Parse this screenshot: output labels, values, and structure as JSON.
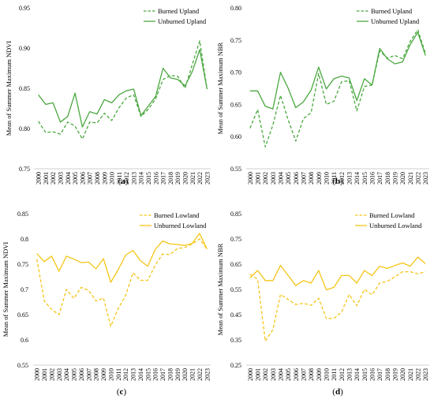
{
  "chart_data": [
    {
      "id": "a",
      "type": "line",
      "caption": "(a)",
      "ylabel": "Mean of Summer Maximum NDVI",
      "xlabel": "",
      "ylim": [
        0.75,
        0.95
      ],
      "yticks": [
        0.75,
        0.8,
        0.85,
        0.9,
        0.95
      ],
      "ytick_labels": [
        "0.75",
        "0.80",
        "0.85",
        "0.90",
        "0.95"
      ],
      "x": [
        "2000",
        "2001",
        "2002",
        "2003",
        "2004",
        "2005",
        "2006",
        "2007",
        "2008",
        "2009",
        "2010",
        "2011",
        "2012",
        "2013",
        "2014",
        "2015",
        "2016",
        "2017",
        "2018",
        "2019",
        "2020",
        "2021",
        "2022",
        "2023"
      ],
      "legend_position": "top-right",
      "series": [
        {
          "name": "Burned Upland",
          "style": "dashed",
          "color": "#4aa83f",
          "values": [
            0.809,
            0.795,
            0.796,
            0.793,
            0.808,
            0.803,
            0.787,
            0.808,
            0.807,
            0.819,
            0.81,
            0.826,
            0.838,
            0.842,
            0.815,
            0.824,
            0.837,
            0.861,
            0.866,
            0.865,
            0.85,
            0.88,
            0.909,
            0.849
          ]
        },
        {
          "name": "Unburned Upland",
          "style": "solid",
          "color": "#4aa83f",
          "values": [
            0.842,
            0.83,
            0.832,
            0.808,
            0.815,
            0.844,
            0.802,
            0.821,
            0.818,
            0.836,
            0.832,
            0.842,
            0.847,
            0.849,
            0.816,
            0.828,
            0.84,
            0.875,
            0.863,
            0.861,
            0.853,
            0.871,
            0.898,
            0.849
          ]
        }
      ]
    },
    {
      "id": "b",
      "type": "line",
      "caption": "(b)",
      "ylabel": "Mean of Summer Maximum NBR",
      "xlabel": "",
      "ylim": [
        0.55,
        0.8
      ],
      "yticks": [
        0.55,
        0.6,
        0.65,
        0.7,
        0.75,
        0.8
      ],
      "ytick_labels": [
        "0.55",
        "0.60",
        "0.65",
        "0.70",
        "0.75",
        "0.80"
      ],
      "x": [
        "2000",
        "2001",
        "2002",
        "2003",
        "2004",
        "2005",
        "2006",
        "2007",
        "2008",
        "2009",
        "2010",
        "2011",
        "2012",
        "2013",
        "2014",
        "2015",
        "2016",
        "2017",
        "2018",
        "2019",
        "2020",
        "2021",
        "2022",
        "2023"
      ],
      "legend_position": "top-right",
      "series": [
        {
          "name": "Burned Upland",
          "style": "dashed",
          "color": "#4aa83f",
          "values": [
            0.613,
            0.642,
            0.584,
            0.618,
            0.664,
            0.626,
            0.593,
            0.628,
            0.637,
            0.698,
            0.65,
            0.655,
            0.685,
            0.687,
            0.64,
            0.678,
            0.68,
            0.733,
            0.722,
            0.726,
            0.721,
            0.748,
            0.766,
            0.729
          ]
        },
        {
          "name": "Unburned Upland",
          "style": "solid",
          "color": "#4aa83f",
          "values": [
            0.671,
            0.671,
            0.647,
            0.643,
            0.7,
            0.675,
            0.645,
            0.654,
            0.672,
            0.708,
            0.674,
            0.69,
            0.694,
            0.691,
            0.656,
            0.69,
            0.68,
            0.737,
            0.721,
            0.713,
            0.716,
            0.743,
            0.762,
            0.726
          ]
        }
      ]
    },
    {
      "id": "c",
      "type": "line",
      "caption": "(c)",
      "ylabel": "Mean of Summer Maximum NDVI",
      "xlabel": "",
      "ylim": [
        0.55,
        0.85
      ],
      "yticks": [
        0.55,
        0.6,
        0.65,
        0.7,
        0.75,
        0.8,
        0.85
      ],
      "ytick_labels": [
        "0.55",
        "0.6",
        "0.65",
        "0.7",
        "0.75",
        "0.8",
        "0.85"
      ],
      "x": [
        "2000",
        "2001",
        "2002",
        "2003",
        "2004",
        "2005",
        "2006",
        "2007",
        "2008",
        "2009",
        "2010",
        "2011",
        "2012",
        "2013",
        "2014",
        "2015",
        "2016",
        "2017",
        "2018",
        "2019",
        "2020",
        "2021",
        "2022",
        "2023"
      ],
      "legend_position": "top-right",
      "series": [
        {
          "name": "Burned Lowland",
          "style": "dashed",
          "color": "#f5c518",
          "values": [
            0.76,
            0.677,
            0.66,
            0.65,
            0.7,
            0.682,
            0.704,
            0.698,
            0.677,
            0.683,
            0.627,
            0.662,
            0.688,
            0.733,
            0.718,
            0.718,
            0.748,
            0.77,
            0.769,
            0.781,
            0.783,
            0.79,
            0.8,
            0.78
          ]
        },
        {
          "name": "Unburned Lowland",
          "style": "solid",
          "color": "#f5c518",
          "values": [
            0.771,
            0.755,
            0.766,
            0.736,
            0.766,
            0.76,
            0.753,
            0.754,
            0.741,
            0.761,
            0.714,
            0.739,
            0.768,
            0.777,
            0.757,
            0.746,
            0.779,
            0.796,
            0.79,
            0.789,
            0.787,
            0.791,
            0.811,
            0.78
          ]
        }
      ]
    },
    {
      "id": "d",
      "type": "line",
      "caption": "(d)",
      "ylabel": "Mean of Summer Maximum NBR",
      "xlabel": "",
      "ylim": [
        0.25,
        0.85
      ],
      "yticks": [
        0.25,
        0.35,
        0.45,
        0.55,
        0.65,
        0.75,
        0.85
      ],
      "ytick_labels": [
        "0.25",
        "0.35",
        "0.45",
        "0.55",
        "0.65",
        "0.75",
        "0.85"
      ],
      "x": [
        "2000",
        "2001",
        "2002",
        "2003",
        "2004",
        "2005",
        "2006",
        "2007",
        "2008",
        "2009",
        "2010",
        "2011",
        "2012",
        "2013",
        "2014",
        "2015",
        "2016",
        "2017",
        "2018",
        "2019",
        "2020",
        "2021",
        "2022",
        "2023"
      ],
      "legend_position": "top-right",
      "series": [
        {
          "name": "Burned Lowland",
          "style": "dashed",
          "color": "#f5c518",
          "values": [
            0.61,
            0.59,
            0.345,
            0.39,
            0.53,
            0.51,
            0.49,
            0.495,
            0.487,
            0.515,
            0.435,
            0.435,
            0.46,
            0.53,
            0.485,
            0.55,
            0.528,
            0.575,
            0.582,
            0.6,
            0.62,
            0.62,
            0.612,
            0.62
          ]
        },
        {
          "name": "Unburned Lowland",
          "style": "solid",
          "color": "#f5c518",
          "values": [
            0.595,
            0.625,
            0.585,
            0.585,
            0.645,
            0.605,
            0.565,
            0.585,
            0.575,
            0.625,
            0.548,
            0.558,
            0.605,
            0.605,
            0.575,
            0.625,
            0.605,
            0.642,
            0.633,
            0.645,
            0.655,
            0.642,
            0.678,
            0.652
          ]
        }
      ]
    }
  ]
}
